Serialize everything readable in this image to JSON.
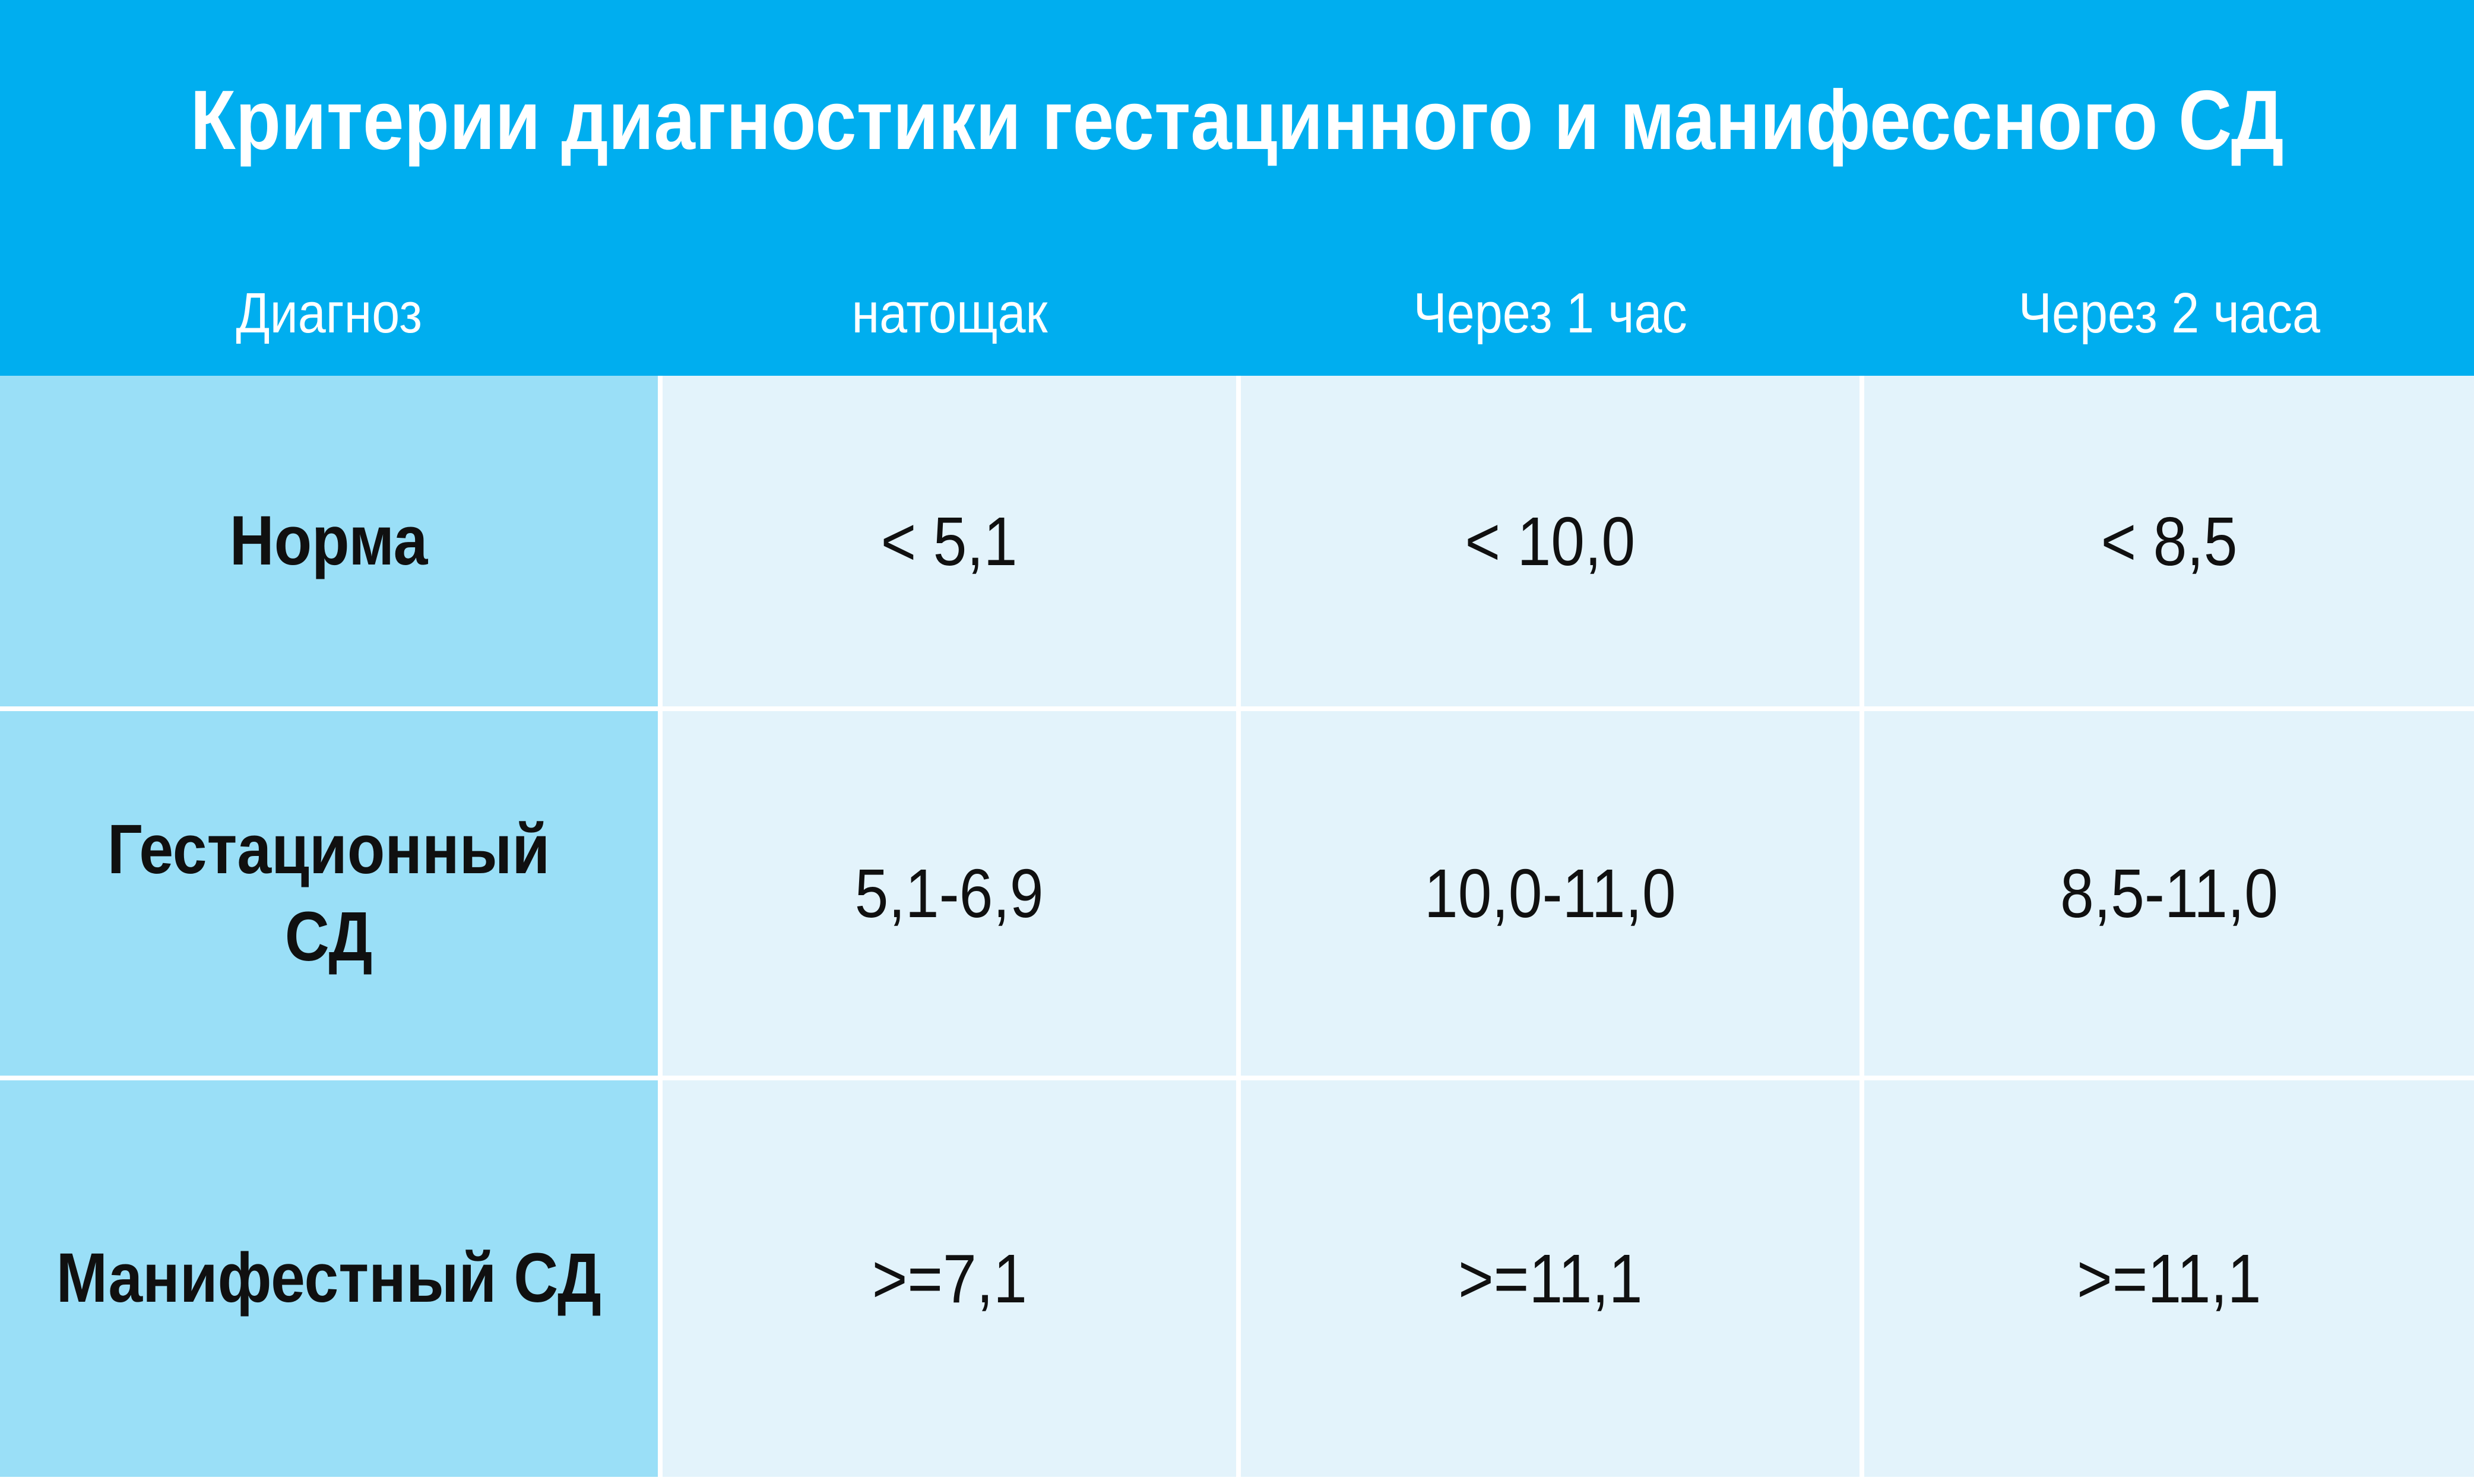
{
  "chart_data": {
    "type": "table",
    "title": "Критерии диагностики гестацинного и манифессного СД",
    "columns": [
      "Диагноз",
      "натощак",
      "Через 1 час",
      "Через 2 часа"
    ],
    "rows": [
      {
        "label": "Норма",
        "values": [
          "< 5,1",
          "< 10,0",
          "< 8,5"
        ]
      },
      {
        "label": "Гестационный\nСД",
        "values": [
          "5,1-6,9",
          "10,0-11,0",
          "8,5-11,0"
        ]
      },
      {
        "label": "Манифестный СД",
        "values": [
          ">=7,1",
          ">=11,1",
          ">=11,1"
        ]
      }
    ],
    "legend_position": "none",
    "grid": "white gaps between cells"
  },
  "colors": {
    "header_bg": "#00AEEF",
    "row_label_bg": "#9ADFF7",
    "cell_bg": "#E3F3FB",
    "gap_color": "#FFFFFF",
    "header_text": "#FFFFFF",
    "body_text": "#101010"
  }
}
